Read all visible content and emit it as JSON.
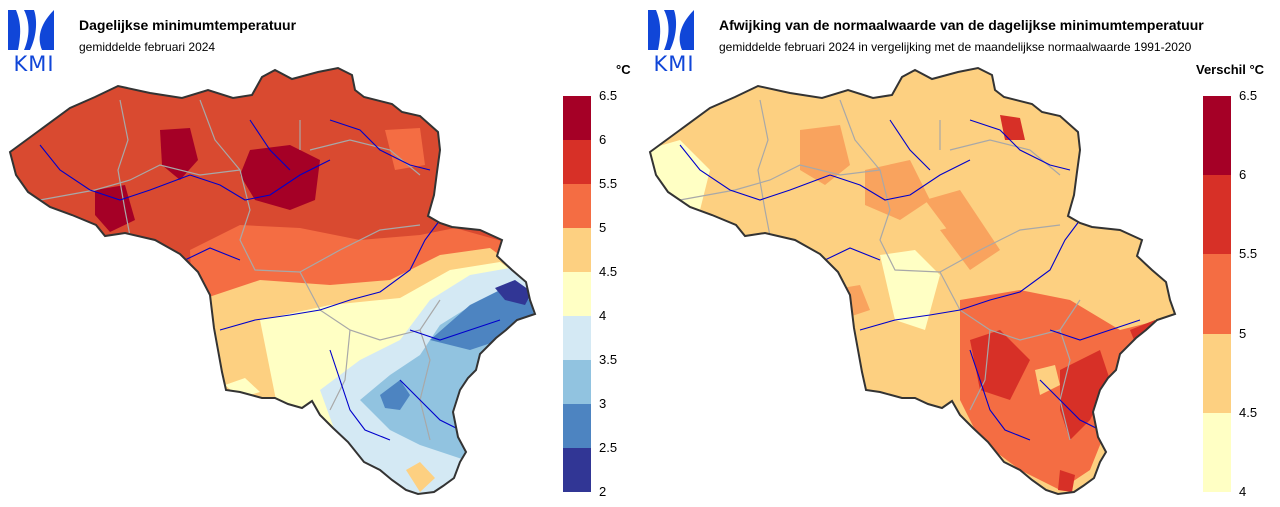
{
  "logo": {
    "text": "KMI",
    "icon": "kmi-logo-icon"
  },
  "maps": [
    {
      "title": "Dagelijkse minimumtemperatuur",
      "subtitle": "gemiddelde februari 2024",
      "unit": "°C",
      "legend": {
        "ticks": [
          "6.5",
          "6",
          "5.5",
          "5",
          "4.5",
          "4",
          "3.5",
          "3",
          "2.5",
          "2"
        ],
        "classes": [
          {
            "from": 6,
            "to": 6.5,
            "color": "#a50026"
          },
          {
            "from": 5.5,
            "to": 6,
            "color": "#d73027"
          },
          {
            "from": 5,
            "to": 5.5,
            "color": "#f46d43"
          },
          {
            "from": 4.5,
            "to": 5,
            "color": "#fdd081"
          },
          {
            "from": 4,
            "to": 4.5,
            "color": "#ffffc4"
          },
          {
            "from": 3.5,
            "to": 4,
            "color": "#d4e9f4"
          },
          {
            "from": 3,
            "to": 3.5,
            "color": "#91c3e0"
          },
          {
            "from": 2.5,
            "to": 3,
            "color": "#4d84c1"
          },
          {
            "from": 2,
            "to": 2.5,
            "color": "#313695"
          }
        ]
      }
    },
    {
      "title": "Afwijking van de normaalwaarde van de dagelijkse minimumtemperatuur",
      "subtitle": "gemiddelde februari 2024 in vergelijking met de maandelijkse normaalwaarde 1991-2020",
      "unit": "Verschil °C",
      "legend": {
        "ticks": [
          "6.5",
          "6",
          "5.5",
          "5",
          "4.5",
          "4"
        ],
        "classes": [
          {
            "from": 6,
            "to": 6.5,
            "color": "#a50026"
          },
          {
            "from": 5.5,
            "to": 6,
            "color": "#d73027"
          },
          {
            "from": 5,
            "to": 5.5,
            "color": "#f46d43"
          },
          {
            "from": 4.5,
            "to": 5,
            "color": "#fdd081"
          },
          {
            "from": 4,
            "to": 4.5,
            "color": "#ffffc4"
          }
        ]
      }
    }
  ],
  "colors": {
    "border": "#333333",
    "rivers": "#0000cc",
    "provinces": "#a8a8a8"
  }
}
